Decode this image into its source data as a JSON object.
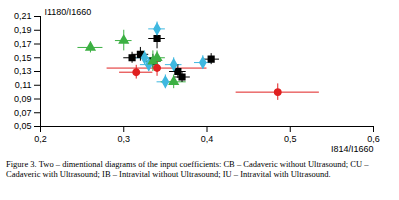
{
  "chart_data": {
    "type": "scatter",
    "caption": "Figure 3. Two – dimentional diagrams of the input coefficients: CB – Cadaveric without Ultrasound; CU – Cadaveric with Ultrasound; IB – Intravital without Ultrasound; IU – Intravital with Ultrasound.",
    "x_label": "I814/I1660",
    "y_label": "I1180/I1660",
    "xlim": [
      0.2,
      0.6
    ],
    "xticks": [
      {
        "value": 0.2,
        "label": "0,2"
      },
      {
        "value": 0.3,
        "label": "0,3"
      },
      {
        "value": 0.4,
        "label": "0,4"
      },
      {
        "value": 0.5,
        "label": "0,5"
      },
      {
        "value": 0.6,
        "label": "0,6"
      }
    ],
    "ylim": [
      0.05,
      0.21
    ],
    "yticks": [
      {
        "value": 0.05,
        "label": "0,05"
      },
      {
        "value": 0.07,
        "label": "0,07"
      },
      {
        "value": 0.09,
        "label": "0,09"
      },
      {
        "value": 0.11,
        "label": "0,11"
      },
      {
        "value": 0.13,
        "label": "0,13"
      },
      {
        "value": 0.15,
        "label": "0,15"
      },
      {
        "value": 0.17,
        "label": "0,17"
      },
      {
        "value": 0.19,
        "label": "0,19"
      },
      {
        "value": 0.21,
        "label": "0,21"
      }
    ],
    "grid": false,
    "series": [
      {
        "color": "#000000",
        "marker": "square",
        "x": [
          0.31,
          0.32,
          0.34,
          0.405,
          0.365,
          0.37,
          0.335
        ],
        "values": [
          0.15,
          0.155,
          0.178,
          0.148,
          0.13,
          0.122,
          0.145
        ],
        "x_error": [
          0.01,
          0.01,
          0.01,
          0.01,
          0.01,
          0.01,
          0.01
        ],
        "y_error": [
          0.008,
          0.01,
          0.015,
          0.008,
          0.01,
          0.008,
          0.01
        ]
      },
      {
        "color": "#3fb8e0",
        "marker": "diamond",
        "x": [
          0.34,
          0.35,
          0.325,
          0.395,
          0.36,
          0.33
        ],
        "values": [
          0.192,
          0.115,
          0.15,
          0.143,
          0.14,
          0.14
        ],
        "x_error": [
          0.01,
          0.01,
          0.01,
          0.01,
          0.01,
          0.01
        ],
        "y_error": [
          0.01,
          0.01,
          0.01,
          0.01,
          0.01,
          0.01
        ]
      },
      {
        "color": "#3cb043",
        "marker": "triangle",
        "x": [
          0.26,
          0.3,
          0.335,
          0.36,
          0.34
        ],
        "values": [
          0.165,
          0.175,
          0.145,
          0.115,
          0.15
        ],
        "x_error": [
          0.015,
          0.01,
          0.01,
          0.015,
          0.01
        ],
        "y_error": [
          0.008,
          0.015,
          0.015,
          0.01,
          0.01
        ]
      },
      {
        "color": "#e02020",
        "marker": "circle",
        "x": [
          0.315,
          0.34,
          0.485
        ],
        "values": [
          0.129,
          0.135,
          0.1
        ],
        "x_error": [
          0.02,
          0.06,
          0.05
        ],
        "y_error": [
          0.01,
          0.012,
          0.012
        ]
      }
    ]
  }
}
